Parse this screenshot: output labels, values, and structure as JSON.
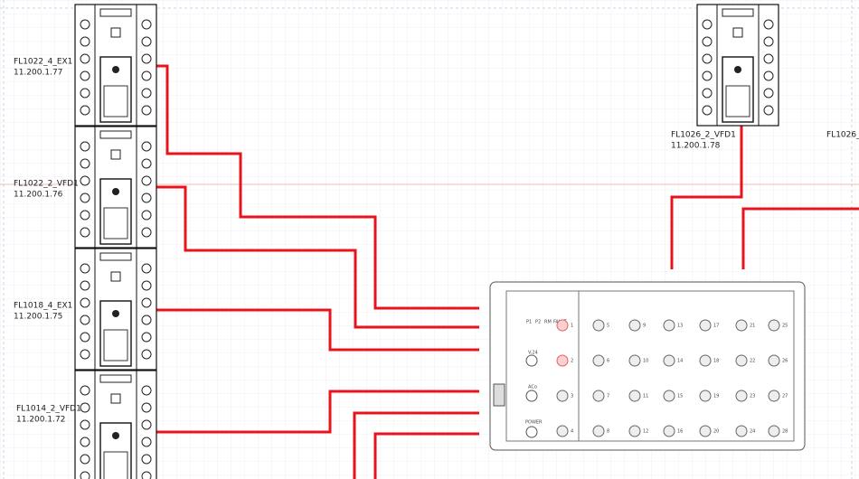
{
  "devices": [
    {
      "label": "FL1022_4_EX1",
      "ip": "11.200.1.77"
    },
    {
      "label": "FL1022_2_VFD1",
      "ip": "11.200.1.76"
    },
    {
      "label": "FL1018_4_EX1",
      "ip": "11.200.1.75"
    },
    {
      "label": "FL1014_2_VFD1",
      "ip": "11.200.1.72"
    },
    {
      "label": "FL1026_2_VFD1",
      "ip": "11.200.1.78"
    }
  ],
  "partial_label": "FL1026_",
  "switch": {
    "status_labels": [
      "P1",
      "P2",
      "RM",
      "FAULT"
    ],
    "port_labels": [
      "V.24",
      "ACo",
      "POWER"
    ],
    "ports": [
      1,
      2,
      3,
      4,
      5,
      6,
      7,
      8,
      9,
      10,
      11,
      12,
      13,
      14,
      15,
      16,
      17,
      18,
      19,
      20,
      21,
      22,
      23,
      24,
      25,
      26,
      27,
      28
    ]
  }
}
